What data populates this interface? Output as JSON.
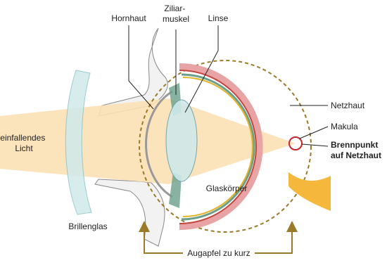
{
  "labels": {
    "hornhaut": "Hornhaut",
    "ziliarmuskel": [
      "Ziliar-",
      "muskel"
    ],
    "linse": "Linse",
    "netzhaut": "Netzhaut",
    "makula": "Makula",
    "brennpunkt": [
      "Brennpunkt",
      "auf Netzhaut"
    ],
    "licht": [
      "einfallendes",
      "Licht"
    ],
    "glaskoerper": "Glaskörper",
    "brillenglas": "Brillenglas",
    "augapfel": "Augapfel zu kurz"
  }
}
